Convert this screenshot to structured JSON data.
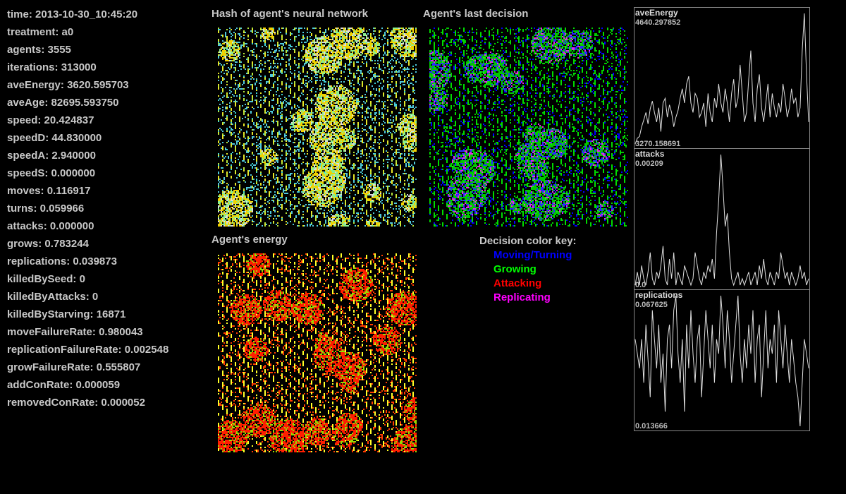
{
  "stats": [
    {
      "label": "time",
      "value": "2013-10-30_10:45:20"
    },
    {
      "label": "treatment",
      "value": "a0"
    },
    {
      "label": "agents",
      "value": "3555"
    },
    {
      "label": "iterations",
      "value": "313000"
    },
    {
      "label": "aveEnergy",
      "value": "3620.595703"
    },
    {
      "label": "aveAge",
      "value": "82695.593750"
    },
    {
      "label": "speed",
      "value": "20.424837"
    },
    {
      "label": "speedD",
      "value": "44.830000"
    },
    {
      "label": "speedA",
      "value": "2.940000"
    },
    {
      "label": "speedS",
      "value": "0.000000"
    },
    {
      "label": "moves",
      "value": "0.116917"
    },
    {
      "label": "turns",
      "value": "0.059966"
    },
    {
      "label": "attacks",
      "value": "0.000000"
    },
    {
      "label": "grows",
      "value": "0.783244"
    },
    {
      "label": "replications",
      "value": "0.039873"
    },
    {
      "label": "killedBySeed",
      "value": "0"
    },
    {
      "label": "killedByAttacks",
      "value": "0"
    },
    {
      "label": "killedByStarving",
      "value": "16871"
    },
    {
      "label": "moveFailureRate",
      "value": "0.980043"
    },
    {
      "label": "replicationFailureRate",
      "value": "0.002548"
    },
    {
      "label": "growFailureRate",
      "value": "0.555807"
    },
    {
      "label": "addConRate",
      "value": "0.000059"
    },
    {
      "label": "removedConRate",
      "value": "0.000052"
    }
  ],
  "maps": {
    "hash_title": "Hash of agent's neural network",
    "decision_title": "Agent's last decision",
    "energy_title": "Agent's energy"
  },
  "key": {
    "title": "Decision color key:",
    "items": [
      {
        "label": "Moving/Turning",
        "color": "#0000ff"
      },
      {
        "label": "Growing",
        "color": "#00ff00"
      },
      {
        "label": "Attacking",
        "color": "#ff0000"
      },
      {
        "label": "Replicating",
        "color": "#ff00ff"
      }
    ]
  },
  "graphs": [
    {
      "name": "aveEnergy",
      "max": "4640.297852",
      "min": "3270.158691",
      "values": [
        3270,
        3330,
        3350,
        3450,
        3520,
        3600,
        3480,
        3640,
        3720,
        3600,
        3500,
        3650,
        3400,
        3700,
        3750,
        3550,
        3680,
        3600,
        3450,
        3550,
        3620,
        3750,
        3850,
        3700,
        3900,
        3980,
        3700,
        3600,
        3800,
        3750,
        3550,
        3600,
        3700,
        3450,
        3800,
        3600,
        3500,
        3750,
        3650,
        3900,
        3700,
        3600,
        3850,
        3700,
        3500,
        3800,
        3950,
        3650,
        3750,
        4100,
        3800,
        3500,
        3600,
        3950,
        4250,
        3700,
        3500,
        3850,
        4000,
        3650,
        3500,
        3700,
        3900,
        3550,
        3800,
        3650,
        3550,
        3700,
        3600,
        3900,
        3750,
        3550,
        3650,
        3850,
        3700,
        3750,
        3550,
        3650,
        4250,
        4640,
        4000,
        3500
      ]
    },
    {
      "name": "attacks",
      "max": "0.00209",
      "min": "0.0",
      "values": [
        0.0001,
        0.0003,
        0.0001,
        0.0004,
        0.0002,
        0.0001,
        0.0003,
        0.0006,
        0.0002,
        0.0001,
        0.0003,
        0.0002,
        0.0004,
        0.0007,
        0.0002,
        0.0001,
        0.0005,
        0.0002,
        0.0006,
        0.0001,
        0.0003,
        0.0002,
        0.0001,
        0.0004,
        0.0003,
        0.0002,
        0.0001,
        0.0002,
        0.0006,
        0.0004,
        0.0002,
        0.0001,
        0.0003,
        0.0002,
        0.0004,
        0.0003,
        0.0005,
        0.0002,
        0.0009,
        0.0014,
        0.0021,
        0.0016,
        0.001,
        0.0012,
        0.0006,
        0.0002,
        0.0001,
        0.0002,
        0.0003,
        0.0001,
        0.0002,
        0.0001,
        0.0002,
        0.0003,
        0.0001,
        0.0002,
        0.0003,
        0.0001,
        0.0004,
        0.0002,
        0.0005,
        0.0002,
        0.0001,
        0.0003,
        0.0002,
        0.0001,
        0.0003,
        0.0002,
        0.0006,
        0.0004,
        0.0002,
        0.0003,
        0.0001,
        0.0003,
        0.0002,
        0.0001,
        0.0002,
        0.0004,
        0.0002,
        0.0003,
        0.0001,
        0.0002
      ]
    },
    {
      "name": "replications",
      "max": "0.067625",
      "min": "0.013666",
      "values": [
        0.045,
        0.04,
        0.035,
        0.045,
        0.03,
        0.05,
        0.038,
        0.025,
        0.055,
        0.045,
        0.035,
        0.05,
        0.03,
        0.04,
        0.02,
        0.045,
        0.05,
        0.035,
        0.055,
        0.06,
        0.04,
        0.03,
        0.045,
        0.02,
        0.05,
        0.035,
        0.055,
        0.04,
        0.03,
        0.045,
        0.05,
        0.025,
        0.04,
        0.055,
        0.045,
        0.035,
        0.05,
        0.03,
        0.045,
        0.04,
        0.06,
        0.05,
        0.035,
        0.055,
        0.045,
        0.03,
        0.04,
        0.05,
        0.06,
        0.04,
        0.03,
        0.045,
        0.035,
        0.05,
        0.04,
        0.055,
        0.03,
        0.045,
        0.05,
        0.025,
        0.04,
        0.055,
        0.035,
        0.045,
        0.04,
        0.05,
        0.03,
        0.055,
        0.045,
        0.035,
        0.05,
        0.04,
        0.03,
        0.045,
        0.038,
        0.03,
        0.025,
        0.015,
        0.03,
        0.045,
        0.04,
        0.035
      ]
    }
  ]
}
